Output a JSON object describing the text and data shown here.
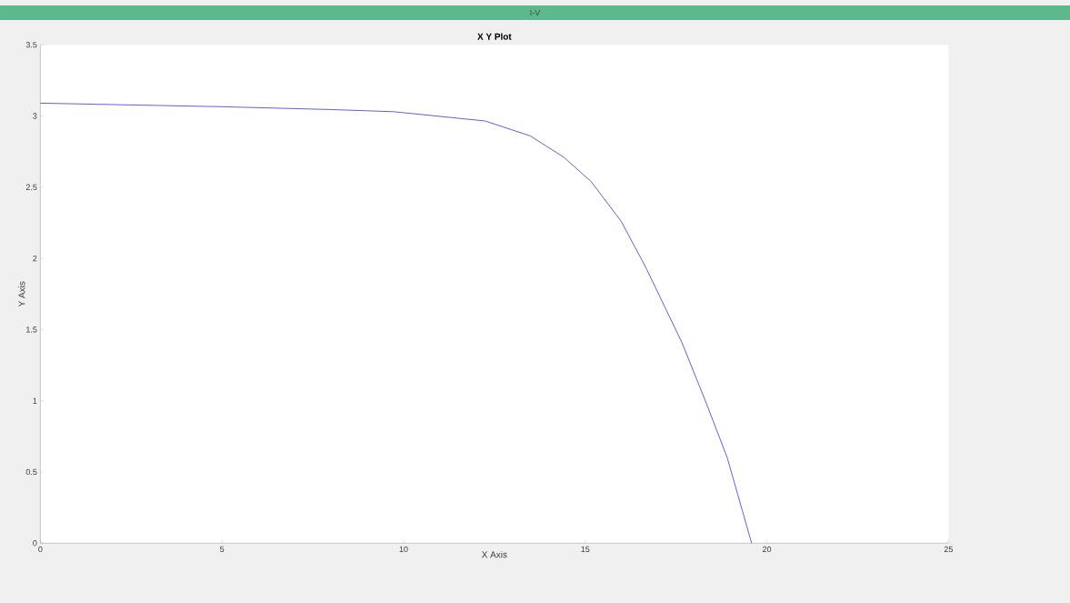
{
  "chart_data": {
    "type": "line",
    "title": "X Y Plot",
    "xlabel": "X Axis",
    "ylabel": "Y Axis",
    "annotations": [
      "I-V"
    ],
    "x": [
      0,
      5,
      8,
      9.73,
      12.24,
      13.49,
      14.41,
      15.16,
      15.99,
      16.66,
      17.66,
      18.33,
      18.91,
      19.58
    ],
    "series": [
      {
        "color": "#3a3ac8",
        "values": [
          3.09,
          3.065,
          3.045,
          3.03,
          2.965,
          2.86,
          2.71,
          2.54,
          2.26,
          1.94,
          1.41,
          0.985,
          0.6,
          0.0
        ]
      }
    ],
    "xlim": [
      0,
      25
    ],
    "ylim": [
      0,
      3.5
    ],
    "xticks": [
      0,
      5,
      10,
      15,
      20,
      25
    ],
    "yticks": [
      0,
      0.5,
      1,
      1.5,
      2,
      2.5,
      3,
      3.5
    ],
    "grid": false,
    "marker": "none",
    "line_style": "solid"
  }
}
